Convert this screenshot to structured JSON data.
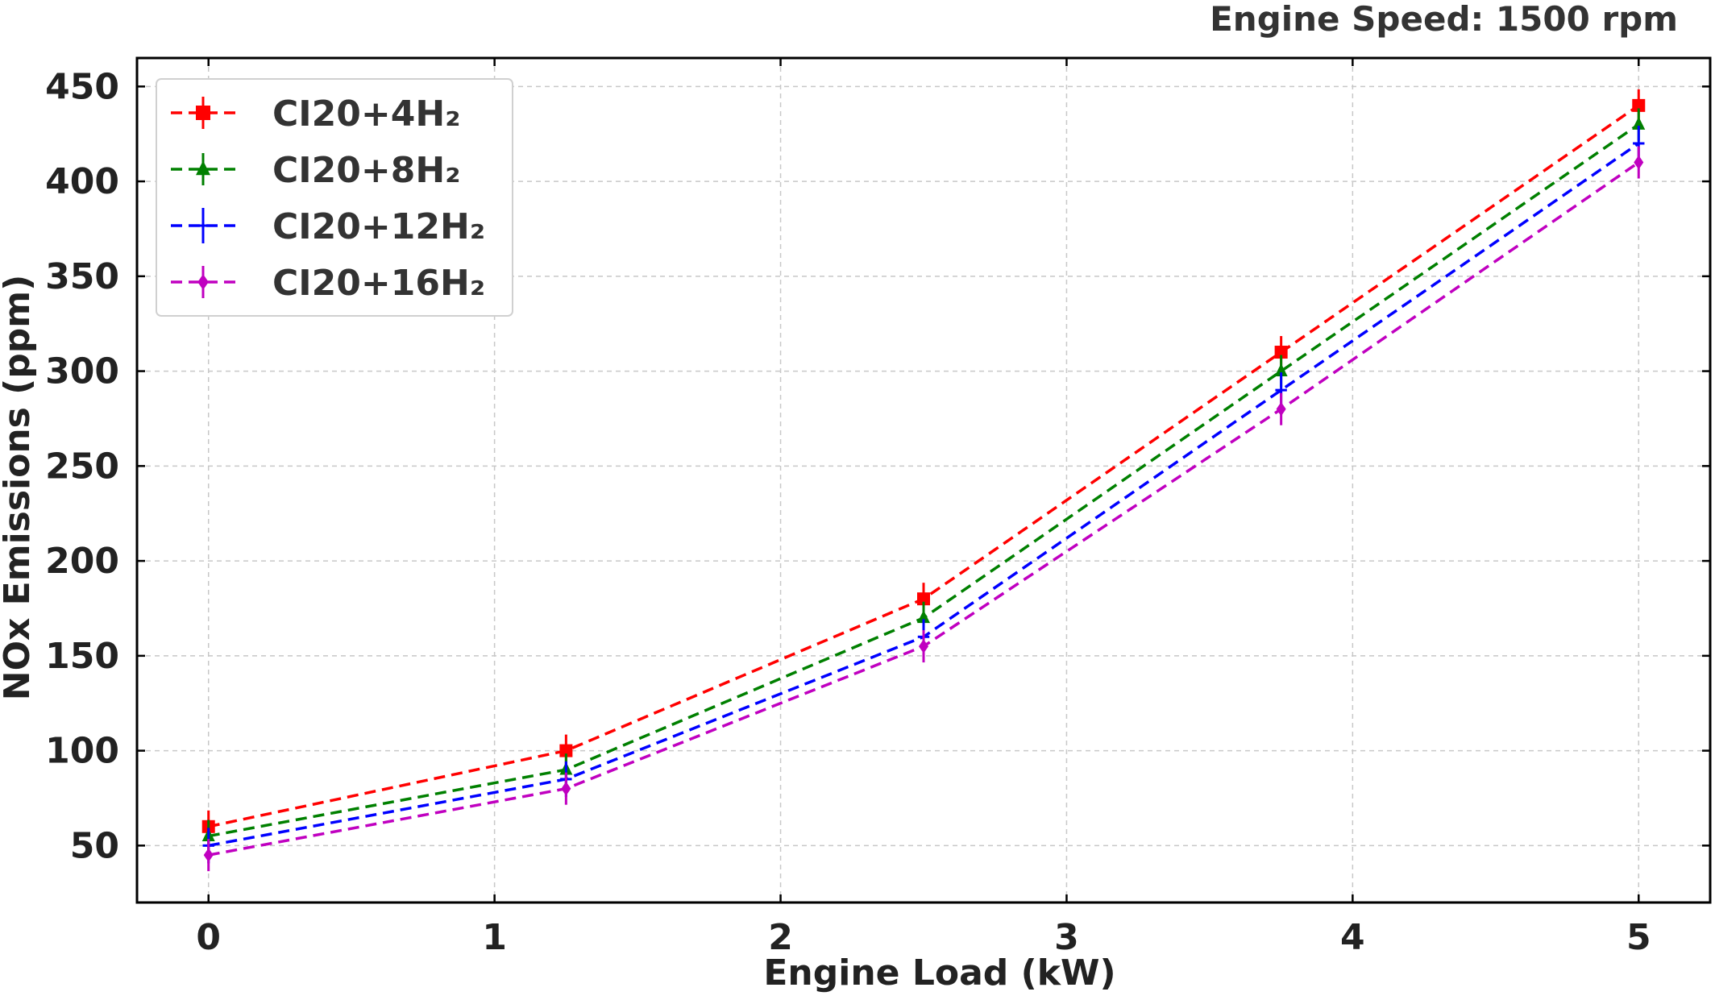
{
  "annotation": "Engine Speed: 1500 rpm",
  "chart_data": {
    "type": "line",
    "title": "",
    "xlabel": "Engine Load (kW)",
    "ylabel": "NOx Emissions (ppm)",
    "xlim": [
      -0.25,
      5.25
    ],
    "ylim": [
      20,
      465
    ],
    "xticks": [
      0,
      1,
      2,
      3,
      4,
      5
    ],
    "yticks": [
      50,
      100,
      150,
      200,
      250,
      300,
      350,
      400,
      450
    ],
    "x": [
      0,
      1.25,
      2.5,
      3.75,
      5
    ],
    "grid": true,
    "legend_position": "top-left",
    "series": [
      {
        "name": "CI20+4H₂",
        "values": [
          60,
          100,
          180,
          310,
          440
        ],
        "color": "#ff0000",
        "marker": "square"
      },
      {
        "name": "CI20+8H₂",
        "values": [
          55,
          90,
          170,
          300,
          430
        ],
        "color": "#008000",
        "marker": "triangle"
      },
      {
        "name": "CI20+12H₂",
        "values": [
          50,
          85,
          160,
          290,
          420
        ],
        "color": "#0000ff",
        "marker": "plus"
      },
      {
        "name": "CI20+16H₂",
        "values": [
          45,
          80,
          155,
          280,
          410
        ],
        "color": "#c000c0",
        "marker": "diamond"
      }
    ]
  }
}
